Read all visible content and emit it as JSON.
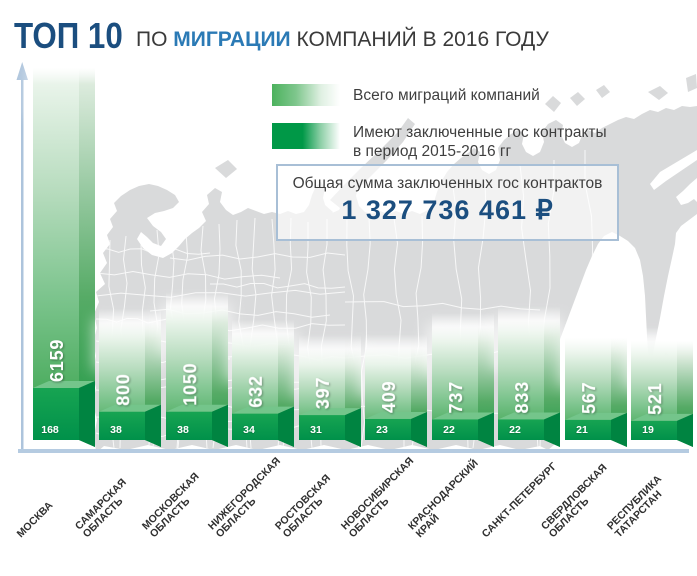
{
  "title": {
    "top10": "ТОП 10",
    "prefix": "ПО",
    "highlight": "МИГРАЦИИ",
    "suffix": "КОМПАНИЙ В 2016 ГОДУ"
  },
  "legend": {
    "items": [
      {
        "label": "Всего миграций компаний",
        "swatch": "green-gradient-light"
      },
      {
        "label": "Имеют заключенные гос контракты\nв период 2015-2016 гг",
        "swatch": "green-gradient-dark"
      }
    ]
  },
  "total_box": {
    "caption": "Общая сумма заключенных гос контрактов",
    "amount": "1 327 736 461 ₽"
  },
  "chart_data": {
    "type": "bar",
    "title": "ТОП 10 ПО МИГРАЦИИ КОМПАНИЙ В 2016 ГОДУ",
    "categories": [
      "МОСКВА",
      "САМАРСКАЯ ОБЛАСТЬ",
      "МОСКОВСКАЯ ОБЛАСТЬ",
      "НИЖЕГОРОДСКАЯ ОБЛАСТЬ",
      "РОСТОВСКАЯ ОБЛАСТЬ",
      "НОВОСИБИРСКАЯ ОБЛАСТЬ",
      "КРАСНОДАРСКИЙ КРАЙ",
      "САНКТ-ПЕТЕРБУРГ",
      "СВЕРДЛОВСКАЯ ОБЛАСТЬ",
      "РЕСПУБЛИКА ТАТАРСТАН"
    ],
    "series": [
      {
        "name": "Всего миграций компаний",
        "values": [
          6159,
          800,
          1050,
          632,
          397,
          409,
          737,
          833,
          567,
          521
        ]
      },
      {
        "name": "Имеют заключенные гос контракты в период 2015-2016 гг",
        "values": [
          168,
          38,
          38,
          34,
          31,
          23,
          22,
          22,
          21,
          19
        ]
      }
    ],
    "legend_position": "top",
    "total_contracts_sum": "1 327 736 461 ₽"
  },
  "colors": {
    "title_blue": "#1b4e7f",
    "highlight_blue": "#2b7ab5",
    "axis_blue": "#adc4dc",
    "map_gray": "#d9dadb",
    "bar_green_dark": "#009247",
    "bar_green_light": "#3aa457"
  }
}
